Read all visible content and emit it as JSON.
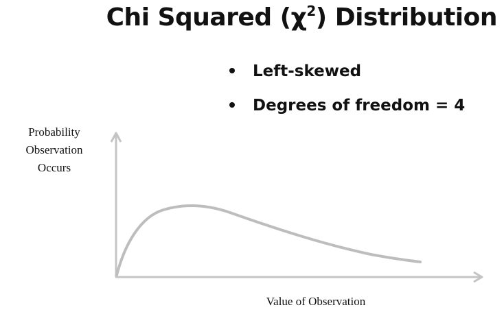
{
  "slide": {
    "title_main": "Chi Squared (χ",
    "title_sup": "2",
    "title_end": ") Distribution",
    "bullets": [
      "Left-skewed",
      "Degrees of freedom = 4"
    ]
  },
  "axes": {
    "ylabel_lines": [
      "Probability",
      "Observation",
      "Occurs"
    ],
    "xlabel": "Value of Observation"
  },
  "colors": {
    "text": "#111111",
    "axis": "#c4c4c4",
    "curve": "#bdbdbd"
  }
}
